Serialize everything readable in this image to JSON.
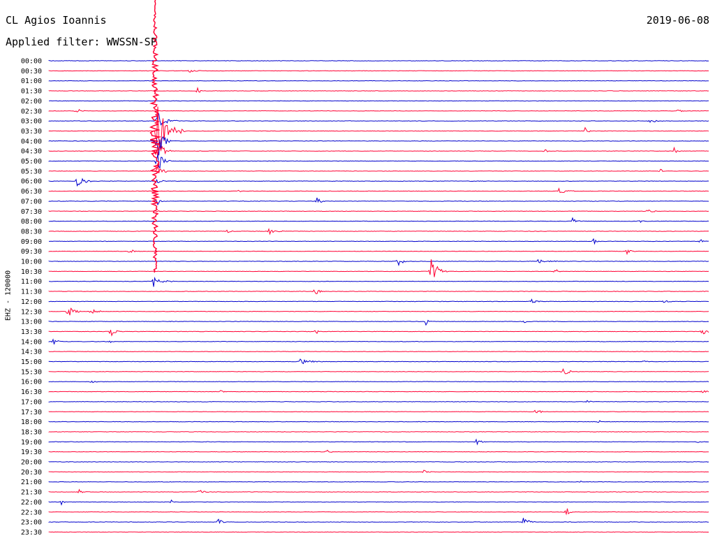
{
  "header": {
    "station": "CL Agios Ioannis",
    "filter": "Applied filter: WWSSN-SP",
    "date": "2019-06-08"
  },
  "channel_label": "EHZ - 120000",
  "colors": {
    "line_a": "#0000cc",
    "line_b": "#ff0033"
  },
  "rows": [
    "00:00",
    "00:30",
    "01:00",
    "01:30",
    "02:00",
    "02:30",
    "03:00",
    "03:30",
    "04:00",
    "04:30",
    "05:00",
    "05:30",
    "06:00",
    "06:30",
    "07:00",
    "07:30",
    "08:00",
    "08:30",
    "09:00",
    "09:30",
    "10:00",
    "10:30",
    "11:00",
    "11:30",
    "12:00",
    "12:30",
    "13:00",
    "13:30",
    "14:00",
    "14:30",
    "15:00",
    "15:30",
    "16:00",
    "16:30",
    "17:00",
    "17:30",
    "18:00",
    "18:30",
    "19:00",
    "19:30",
    "20:00",
    "20:30",
    "21:00",
    "21:30",
    "22:00",
    "22:30",
    "23:00",
    "23:30"
  ]
}
